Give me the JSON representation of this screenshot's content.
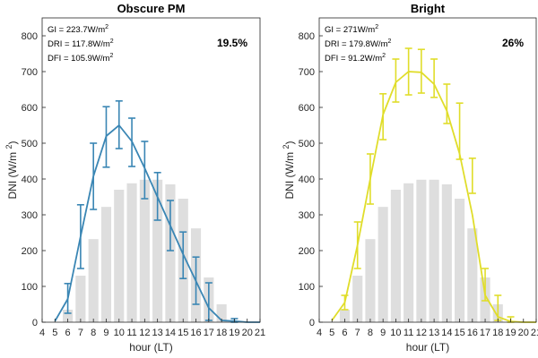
{
  "chart_data": [
    {
      "type": "bar+line",
      "title": "Obscure PM",
      "xlabel": "hour (LT)",
      "ylabel": "DNI (W/m ",
      "ylabel_sup": "2",
      "ylabel_close": ")",
      "xlim": [
        4,
        21
      ],
      "ylim": [
        0,
        850
      ],
      "xticks": [
        4,
        5,
        6,
        7,
        8,
        9,
        10,
        11,
        12,
        13,
        14,
        15,
        16,
        17,
        18,
        19,
        20,
        21
      ],
      "yticks": [
        0,
        100,
        200,
        300,
        400,
        500,
        600,
        700,
        800
      ],
      "annotations": {
        "gi": "GI = 223.7W/m",
        "dri": "DRI  = 117.8W/m",
        "dfi": "DFI = 105.9W/m",
        "sup": "2",
        "percent": "19.5%"
      },
      "line_color": "#3a86b4",
      "bar_color": "#dedede",
      "bars": {
        "x": [
          6,
          7,
          8,
          9,
          10,
          11,
          12,
          13,
          14,
          15,
          16,
          17,
          18
        ],
        "values": [
          35,
          130,
          232,
          322,
          370,
          388,
          398,
          398,
          385,
          345,
          262,
          125,
          50
        ]
      },
      "line": {
        "x": [
          5,
          6,
          7,
          8,
          9,
          10,
          11,
          12,
          13,
          14,
          15,
          16,
          17,
          18,
          19,
          20,
          21
        ],
        "values": [
          3,
          65,
          240,
          408,
          520,
          550,
          505,
          430,
          350,
          270,
          190,
          115,
          40,
          5,
          3,
          0,
          0
        ]
      },
      "errorbars": [
        {
          "x": 6,
          "low": 25,
          "high": 108
        },
        {
          "x": 7,
          "low": 150,
          "high": 328
        },
        {
          "x": 8,
          "low": 315,
          "high": 500
        },
        {
          "x": 9,
          "low": 433,
          "high": 602
        },
        {
          "x": 10,
          "low": 485,
          "high": 618
        },
        {
          "x": 11,
          "low": 435,
          "high": 570
        },
        {
          "x": 12,
          "low": 345,
          "high": 505
        },
        {
          "x": 13,
          "low": 285,
          "high": 418
        },
        {
          "x": 14,
          "low": 200,
          "high": 340
        },
        {
          "x": 15,
          "low": 122,
          "high": 252
        },
        {
          "x": 16,
          "low": 50,
          "high": 182
        },
        {
          "x": 17,
          "low": 5,
          "high": 110
        },
        {
          "x": 19,
          "low": 0,
          "high": 10
        }
      ]
    },
    {
      "type": "bar+line",
      "title": "Bright",
      "xlabel": "hour (LT)",
      "ylabel": "DNI (W/m ",
      "ylabel_sup": "2",
      "ylabel_close": ")",
      "xlim": [
        4,
        21
      ],
      "ylim": [
        0,
        850
      ],
      "xticks": [
        4,
        5,
        6,
        7,
        8,
        9,
        10,
        11,
        12,
        13,
        14,
        15,
        16,
        17,
        18,
        19,
        20,
        21
      ],
      "yticks": [
        0,
        100,
        200,
        300,
        400,
        500,
        600,
        700,
        800
      ],
      "annotations": {
        "gi": "GI = 271W/m",
        "dri": "DRI = 179.8W/m",
        "dfi": "DFI = 91.2W/m",
        "sup": "2",
        "percent": "26%"
      },
      "line_color": "#e0dd2a",
      "bar_color": "#dedede",
      "bars": {
        "x": [
          6,
          7,
          8,
          9,
          10,
          11,
          12,
          13,
          14,
          15,
          16,
          17,
          18
        ],
        "values": [
          35,
          130,
          232,
          322,
          370,
          388,
          398,
          398,
          385,
          345,
          262,
          125,
          50
        ]
      },
      "line": {
        "x": [
          5,
          6,
          7,
          8,
          9,
          10,
          11,
          12,
          13,
          14,
          15,
          16,
          17,
          18,
          19,
          20,
          21
        ],
        "values": [
          5,
          55,
          215,
          400,
          580,
          670,
          700,
          698,
          665,
          590,
          470,
          300,
          75,
          15,
          2,
          0,
          0
        ]
      },
      "errorbars": [
        {
          "x": 6,
          "low": 35,
          "high": 75
        },
        {
          "x": 7,
          "low": 150,
          "high": 280
        },
        {
          "x": 8,
          "low": 330,
          "high": 470
        },
        {
          "x": 9,
          "low": 510,
          "high": 638
        },
        {
          "x": 10,
          "low": 615,
          "high": 735
        },
        {
          "x": 11,
          "low": 635,
          "high": 765
        },
        {
          "x": 12,
          "low": 640,
          "high": 762
        },
        {
          "x": 13,
          "low": 628,
          "high": 735
        },
        {
          "x": 14,
          "low": 555,
          "high": 665
        },
        {
          "x": 15,
          "low": 455,
          "high": 612
        },
        {
          "x": 16,
          "low": 360,
          "high": 458
        },
        {
          "x": 17,
          "low": 60,
          "high": 150
        },
        {
          "x": 18,
          "low": 5,
          "high": 75
        },
        {
          "x": 19,
          "low": 0,
          "high": 15
        }
      ]
    }
  ]
}
